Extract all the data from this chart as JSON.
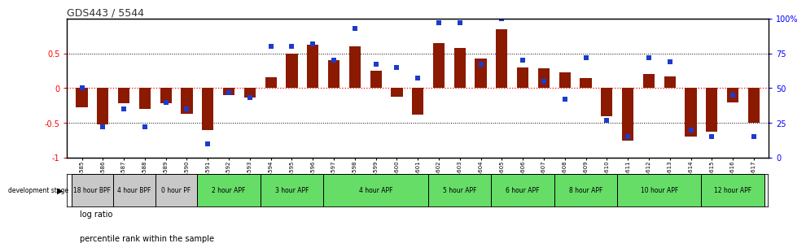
{
  "title": "GDS443 / 5544",
  "samples": [
    "GSM4585",
    "GSM4586",
    "GSM4587",
    "GSM4588",
    "GSM4589",
    "GSM4590",
    "GSM4591",
    "GSM4592",
    "GSM4593",
    "GSM4594",
    "GSM4595",
    "GSM4596",
    "GSM4597",
    "GSM4598",
    "GSM4599",
    "GSM4600",
    "GSM4601",
    "GSM4602",
    "GSM4603",
    "GSM4604",
    "GSM4605",
    "GSM4606",
    "GSM4607",
    "GSM4608",
    "GSM4609",
    "GSM4610",
    "GSM4611",
    "GSM4612",
    "GSM4613",
    "GSM4614",
    "GSM4615",
    "GSM4616",
    "GSM4617"
  ],
  "log_ratios": [
    -0.28,
    -0.52,
    -0.22,
    -0.3,
    -0.22,
    -0.37,
    -0.6,
    -0.1,
    -0.13,
    0.16,
    0.5,
    0.62,
    0.4,
    0.6,
    0.25,
    -0.12,
    -0.38,
    0.65,
    0.58,
    0.43,
    0.85,
    0.3,
    0.28,
    0.23,
    0.15,
    -0.4,
    -0.75,
    0.2,
    0.17,
    -0.7,
    -0.62,
    -0.2,
    -0.5
  ],
  "percentile_ranks": [
    50,
    22,
    35,
    22,
    40,
    35,
    10,
    47,
    43,
    80,
    80,
    82,
    70,
    93,
    67,
    65,
    57,
    97,
    97,
    67,
    100,
    70,
    55,
    42,
    72,
    27,
    15,
    72,
    69,
    20,
    15,
    45,
    15
  ],
  "bar_color": "#8B1A00",
  "dot_color": "#1C3BCC",
  "stages": [
    {
      "label": "18 hour BPF",
      "start": 0,
      "end": 2,
      "color": "#c8c8c8"
    },
    {
      "label": "4 hour BPF",
      "start": 2,
      "end": 4,
      "color": "#c8c8c8"
    },
    {
      "label": "0 hour PF",
      "start": 4,
      "end": 6,
      "color": "#c8c8c8"
    },
    {
      "label": "2 hour APF",
      "start": 6,
      "end": 9,
      "color": "#66DD66"
    },
    {
      "label": "3 hour APF",
      "start": 9,
      "end": 12,
      "color": "#66DD66"
    },
    {
      "label": "4 hour APF",
      "start": 12,
      "end": 17,
      "color": "#66DD66"
    },
    {
      "label": "5 hour APF",
      "start": 17,
      "end": 20,
      "color": "#66DD66"
    },
    {
      "label": "6 hour APF",
      "start": 20,
      "end": 23,
      "color": "#66DD66"
    },
    {
      "label": "8 hour APF",
      "start": 23,
      "end": 26,
      "color": "#66DD66"
    },
    {
      "label": "10 hour APF",
      "start": 26,
      "end": 30,
      "color": "#66DD66"
    },
    {
      "label": "12 hour APF",
      "start": 30,
      "end": 33,
      "color": "#66DD66"
    }
  ],
  "ylim_left": [
    -1.0,
    1.0
  ],
  "ylim_right": [
    0,
    100
  ],
  "yticks_left": [
    -1.0,
    -0.5,
    0.0,
    0.5
  ],
  "ytick_labels_left": [
    "-1",
    "-0.5",
    "0",
    "0.5"
  ],
  "yticks_right": [
    0,
    25,
    50,
    75,
    100
  ],
  "ytick_labels_right": [
    "0",
    "25",
    "50",
    "75",
    "100%"
  ],
  "dev_stage_label": "development stage",
  "legend_log": "log ratio",
  "legend_pct": "percentile rank within the sample"
}
